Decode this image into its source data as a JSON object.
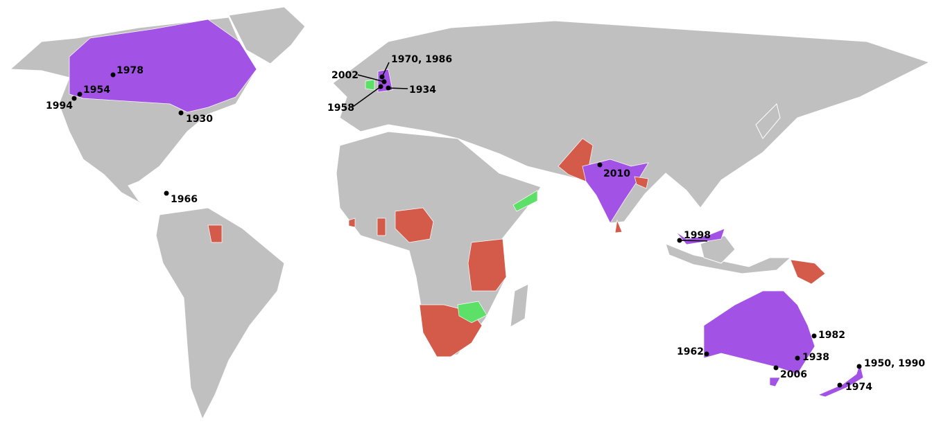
{
  "map": {
    "labels": [
      "1978",
      "1954",
      "1994",
      "1930",
      "1970, 1986",
      "2002",
      "1934",
      "1958",
      "2010",
      "1966",
      "1998",
      "1982",
      "1962",
      "1938",
      "2006",
      "1950, 1990",
      "1974"
    ]
  }
}
